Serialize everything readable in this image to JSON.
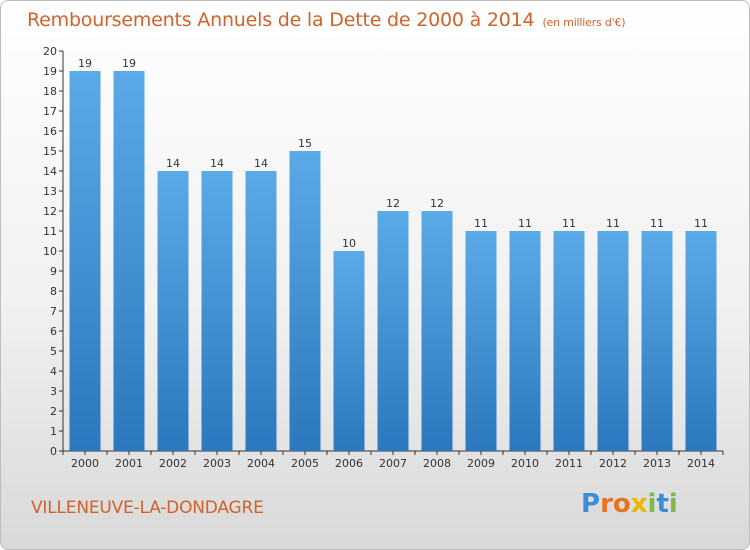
{
  "header": {
    "title": "Remboursements Annuels de la Dette de 2000 à 2014",
    "unit": "(en milliers d'€)"
  },
  "footer": {
    "city": "VILLENEUVE-LA-DONDAGRE",
    "brand": "Proxiti",
    "brand_letters": [
      {
        "ch": "P",
        "color": "#3b8ed3"
      },
      {
        "ch": "r",
        "color": "#e8731f"
      },
      {
        "ch": "o",
        "color": "#e8731f"
      },
      {
        "ch": "x",
        "color": "#f0b400"
      },
      {
        "ch": "i",
        "color": "#7db84a"
      },
      {
        "ch": "t",
        "color": "#3b8ed3"
      },
      {
        "ch": "i",
        "color": "#7db84a"
      }
    ]
  },
  "colors": {
    "bar_top": "#5aaae8",
    "bar_bottom": "#2a78bd",
    "title": "#d0622a"
  },
  "chart_data": {
    "type": "bar",
    "title": "Remboursements Annuels de la Dette de 2000 à 2014",
    "subtitle": "(en milliers d'€)",
    "xlabel": "",
    "ylabel": "",
    "ylim": [
      0,
      20
    ],
    "yticks": [
      0,
      1,
      2,
      3,
      4,
      5,
      6,
      7,
      8,
      9,
      10,
      11,
      12,
      13,
      14,
      15,
      16,
      17,
      18,
      19,
      20
    ],
    "categories": [
      "2000",
      "2001",
      "2002",
      "2003",
      "2004",
      "2005",
      "2006",
      "2007",
      "2008",
      "2009",
      "2010",
      "2011",
      "2012",
      "2013",
      "2014"
    ],
    "values": [
      19,
      19,
      14,
      14,
      14,
      15,
      10,
      12,
      12,
      11,
      11,
      11,
      11,
      11,
      11
    ],
    "grid": false,
    "legend": "none"
  }
}
